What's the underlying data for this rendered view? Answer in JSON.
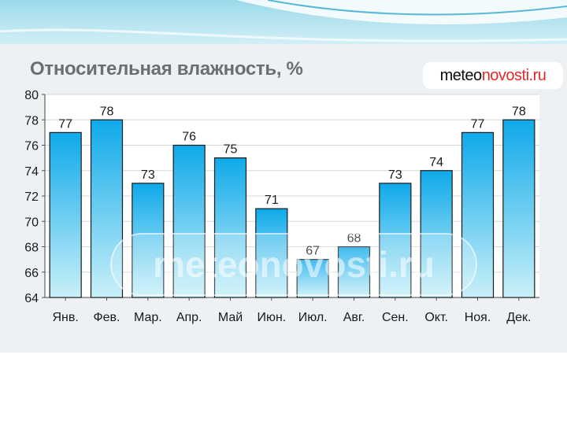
{
  "chart_data": {
    "type": "bar",
    "title": "Относительная влажность, %",
    "categories": [
      "Янв.",
      "Фев.",
      "Мар.",
      "Апр.",
      "Май",
      "Июн.",
      "Июл.",
      "Авг.",
      "Сен.",
      "Окт.",
      "Ноя.",
      "Дек."
    ],
    "values": [
      77,
      78,
      73,
      76,
      75,
      71,
      67,
      68,
      73,
      74,
      77,
      78
    ],
    "ylim": [
      64,
      80
    ],
    "yticks": [
      64,
      66,
      68,
      70,
      72,
      74,
      76,
      78,
      80
    ],
    "grid": true,
    "data_labels": true,
    "bar_color_top": "#0ea9ea",
    "bar_color_bottom": "#c9f0f8"
  },
  "brand": {
    "part1": "meteo",
    "part2": "novosti.ru",
    "accent": "#e32a2a"
  },
  "watermark": "meteonovosti.ru"
}
